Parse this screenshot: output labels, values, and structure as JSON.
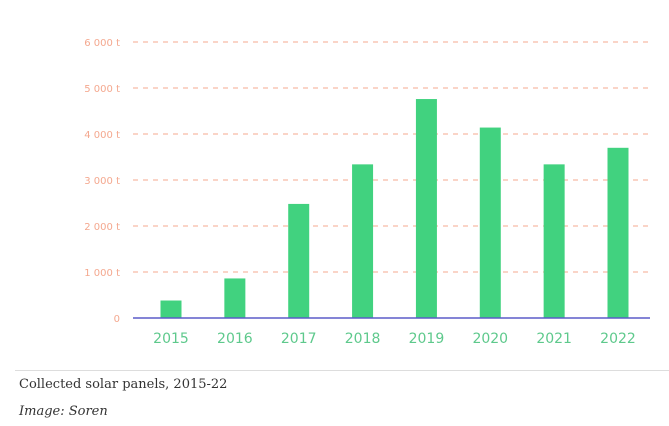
{
  "chart_data": {
    "type": "bar",
    "categories": [
      "2015",
      "2016",
      "2017",
      "2018",
      "2019",
      "2020",
      "2021",
      "2022"
    ],
    "values": [
      380,
      860,
      2480,
      3340,
      4760,
      4140,
      3340,
      3700
    ],
    "yticks": [
      0,
      1000,
      2000,
      3000,
      4000,
      5000,
      6000
    ],
    "ytick_labels": [
      "0",
      "1 000 t",
      "2 000 t",
      "3 000 t",
      "4 000 t",
      "5 000 t",
      "6 000 t"
    ],
    "ylim": [
      0,
      6000
    ],
    "grid": true,
    "title": "",
    "xlabel": "",
    "ylabel": ""
  },
  "colors": {
    "bar": "#41d27f",
    "grid": "#f4a88f",
    "tick_label": "#f4a88f",
    "category_label": "#5ec98c",
    "axis": "#5b5bc8"
  },
  "caption": "Collected solar panels, 2015-22",
  "credit": "Image: Soren"
}
